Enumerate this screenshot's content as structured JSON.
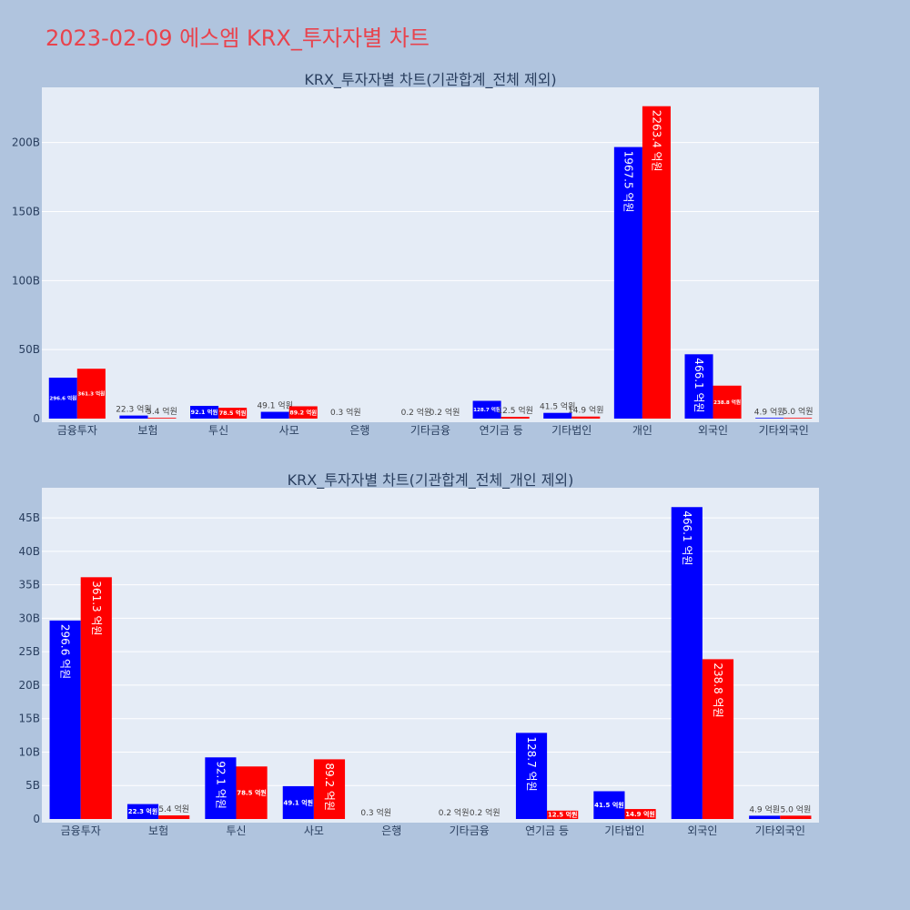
{
  "page": {
    "title": "2023-02-09 에스엠 KRX_투자자별 차트"
  },
  "colors": {
    "buy": "#0000ff",
    "sell": "#ff0000",
    "title": "#e8434d",
    "plot_bg": "#e5ecf6",
    "grid": "#ffffff"
  },
  "chart_data": [
    {
      "type": "bar",
      "title": "KRX_투자자별 차트(기관합계_전체 제외)",
      "categories": [
        "금융투자",
        "보험",
        "투신",
        "사모",
        "은행",
        "기타금융",
        "연기금 등",
        "기타법인",
        "개인",
        "외국인",
        "기타외국인"
      ],
      "series": [
        {
          "color": "#0000ff",
          "values": [
            29.66,
            2.23,
            9.21,
            4.91,
            0.03,
            0.02,
            12.87,
            4.15,
            196.75,
            46.61,
            0.49
          ],
          "labels": [
            "296.6 억원",
            "22.3 억원",
            "92.1 억원",
            "49.1 억원",
            "0.3 억원",
            "0.2 억원",
            "128.7 억원",
            "41.5 억원",
            "1967.5 억원",
            "466.1 억원",
            "4.9 억원"
          ]
        },
        {
          "color": "#ff0000",
          "values": [
            36.13,
            0.54,
            7.85,
            8.92,
            0,
            0.02,
            1.25,
            1.49,
            226.34,
            23.88,
            0.5
          ],
          "labels": [
            "361.3 억원",
            "5.4 억원",
            "78.5 억원",
            "89.2 억원",
            "",
            "0.2 억원",
            "12.5 억원",
            "14.9 억원",
            "2263.4 억원",
            "238.8 억원",
            "5.0 억원"
          ]
        }
      ],
      "yticks": [
        0,
        50,
        100,
        150,
        200
      ],
      "ytick_labels": [
        "0",
        "50B",
        "100B",
        "150B",
        "200B"
      ],
      "ylim": [
        0,
        240
      ]
    },
    {
      "type": "bar",
      "title": "KRX_투자자별 차트(기관합계_전체_개인 제외)",
      "categories": [
        "금융투자",
        "보험",
        "투신",
        "사모",
        "은행",
        "기타금융",
        "연기금 등",
        "기타법인",
        "외국인",
        "기타외국인"
      ],
      "series": [
        {
          "color": "#0000ff",
          "values": [
            29.66,
            2.23,
            9.21,
            4.91,
            0.03,
            0.02,
            12.87,
            4.15,
            46.61,
            0.49
          ],
          "labels": [
            "296.6 억원",
            "22.3 억원",
            "92.1 억원",
            "49.1 억원",
            "0.3 억원",
            "0.2 억원",
            "128.7 억원",
            "41.5 억원",
            "466.1 억원",
            "4.9 억원"
          ]
        },
        {
          "color": "#ff0000",
          "values": [
            36.13,
            0.54,
            7.85,
            8.92,
            0,
            0.02,
            1.25,
            1.49,
            23.88,
            0.5
          ],
          "labels": [
            "361.3 억원",
            "5.4 억원",
            "78.5 억원",
            "89.2 억원",
            "",
            "0.2 억원",
            "12.5 억원",
            "14.9 억원",
            "238.8 억원",
            "5.0 억원"
          ]
        }
      ],
      "yticks": [
        0,
        5,
        10,
        15,
        20,
        25,
        30,
        35,
        40,
        45
      ],
      "ytick_labels": [
        "0",
        "5B",
        "10B",
        "15B",
        "20B",
        "25B",
        "30B",
        "35B",
        "40B",
        "45B"
      ],
      "ylim": [
        0,
        49.5
      ]
    }
  ]
}
